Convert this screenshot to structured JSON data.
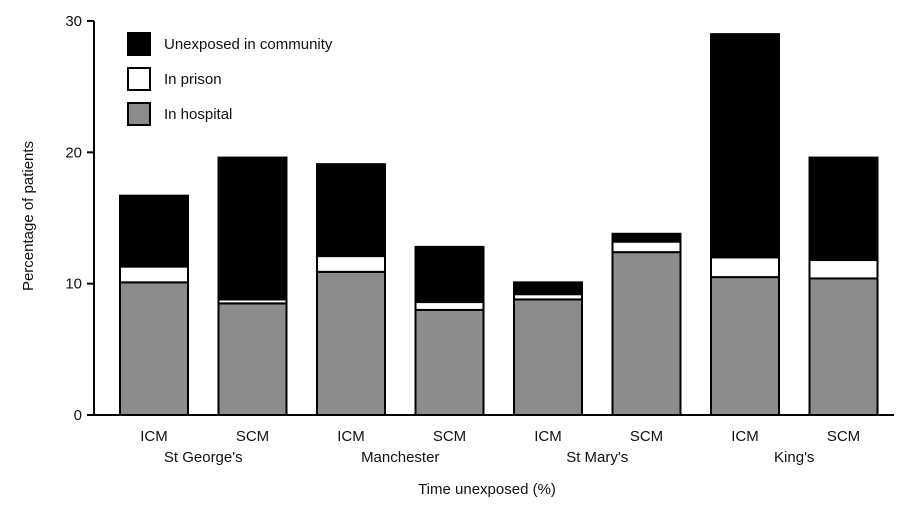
{
  "chart_data": {
    "type": "bar",
    "stacked": true,
    "xlabel": "Time unexposed (%)",
    "ylabel": "Percentage of patients",
    "ylim": [
      0,
      30
    ],
    "yticks": [
      0,
      10,
      20,
      30
    ],
    "grid": false,
    "legend_position": "top-left",
    "categories": [
      "ICM",
      "SCM",
      "ICM",
      "SCM",
      "ICM",
      "SCM",
      "ICM",
      "SCM"
    ],
    "groups": [
      "St George's",
      "Manchester",
      "St Mary's",
      "King's"
    ],
    "series": [
      {
        "name": "In hospital",
        "color": "#8c8c8c",
        "values": [
          10.1,
          8.5,
          10.9,
          8.0,
          8.8,
          12.4,
          10.5,
          10.4
        ]
      },
      {
        "name": "In prison",
        "color": "#ffffff",
        "values": [
          1.2,
          0.3,
          1.2,
          0.6,
          0.4,
          0.8,
          1.5,
          1.4
        ]
      },
      {
        "name": "Unexposed in community",
        "color": "#000000",
        "values": [
          5.4,
          10.8,
          7.0,
          4.2,
          0.9,
          0.6,
          17.0,
          7.8
        ]
      }
    ],
    "legend_order": [
      "Unexposed in community",
      "In prison",
      "In hospital"
    ]
  }
}
